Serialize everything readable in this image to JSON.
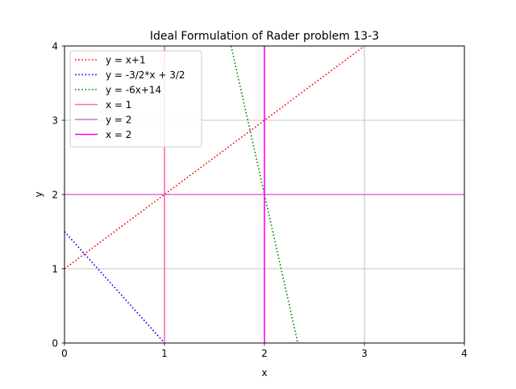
{
  "chart_data": {
    "type": "line",
    "title": "Ideal Formulation of Rader problem 13-3",
    "xlabel": "x",
    "ylabel": "y",
    "xlim": [
      0,
      4
    ],
    "ylim": [
      0,
      4
    ],
    "xticks": [
      "0",
      "1",
      "2",
      "3",
      "4"
    ],
    "yticks": [
      "0",
      "1",
      "2",
      "3",
      "4"
    ],
    "grid": true,
    "legend_position": "top-left",
    "series": [
      {
        "name": "y = x+1",
        "color": "#ff0000",
        "style": "dotted",
        "points": [
          [
            0,
            1
          ],
          [
            3,
            4
          ]
        ]
      },
      {
        "name": "y = -3/2*x + 3/2",
        "color": "#0000ff",
        "style": "dotted",
        "points": [
          [
            0,
            1.5
          ],
          [
            1,
            0
          ]
        ]
      },
      {
        "name": "y = -6x+14",
        "color": "#008000",
        "style": "dotted",
        "points": [
          [
            1.6667,
            4
          ],
          [
            2.3333,
            0
          ]
        ]
      },
      {
        "name": "x = 1",
        "color": "#ff69b4",
        "style": "solid",
        "points": [
          [
            1,
            0
          ],
          [
            1,
            4
          ]
        ]
      },
      {
        "name": "y = 2",
        "color": "#da70d6",
        "style": "solid",
        "points": [
          [
            0,
            2
          ],
          [
            4,
            2
          ]
        ]
      },
      {
        "name": "x = 2",
        "color": "#ff00ff",
        "style": "solid",
        "points": [
          [
            2,
            0
          ],
          [
            2,
            4
          ]
        ]
      }
    ]
  }
}
